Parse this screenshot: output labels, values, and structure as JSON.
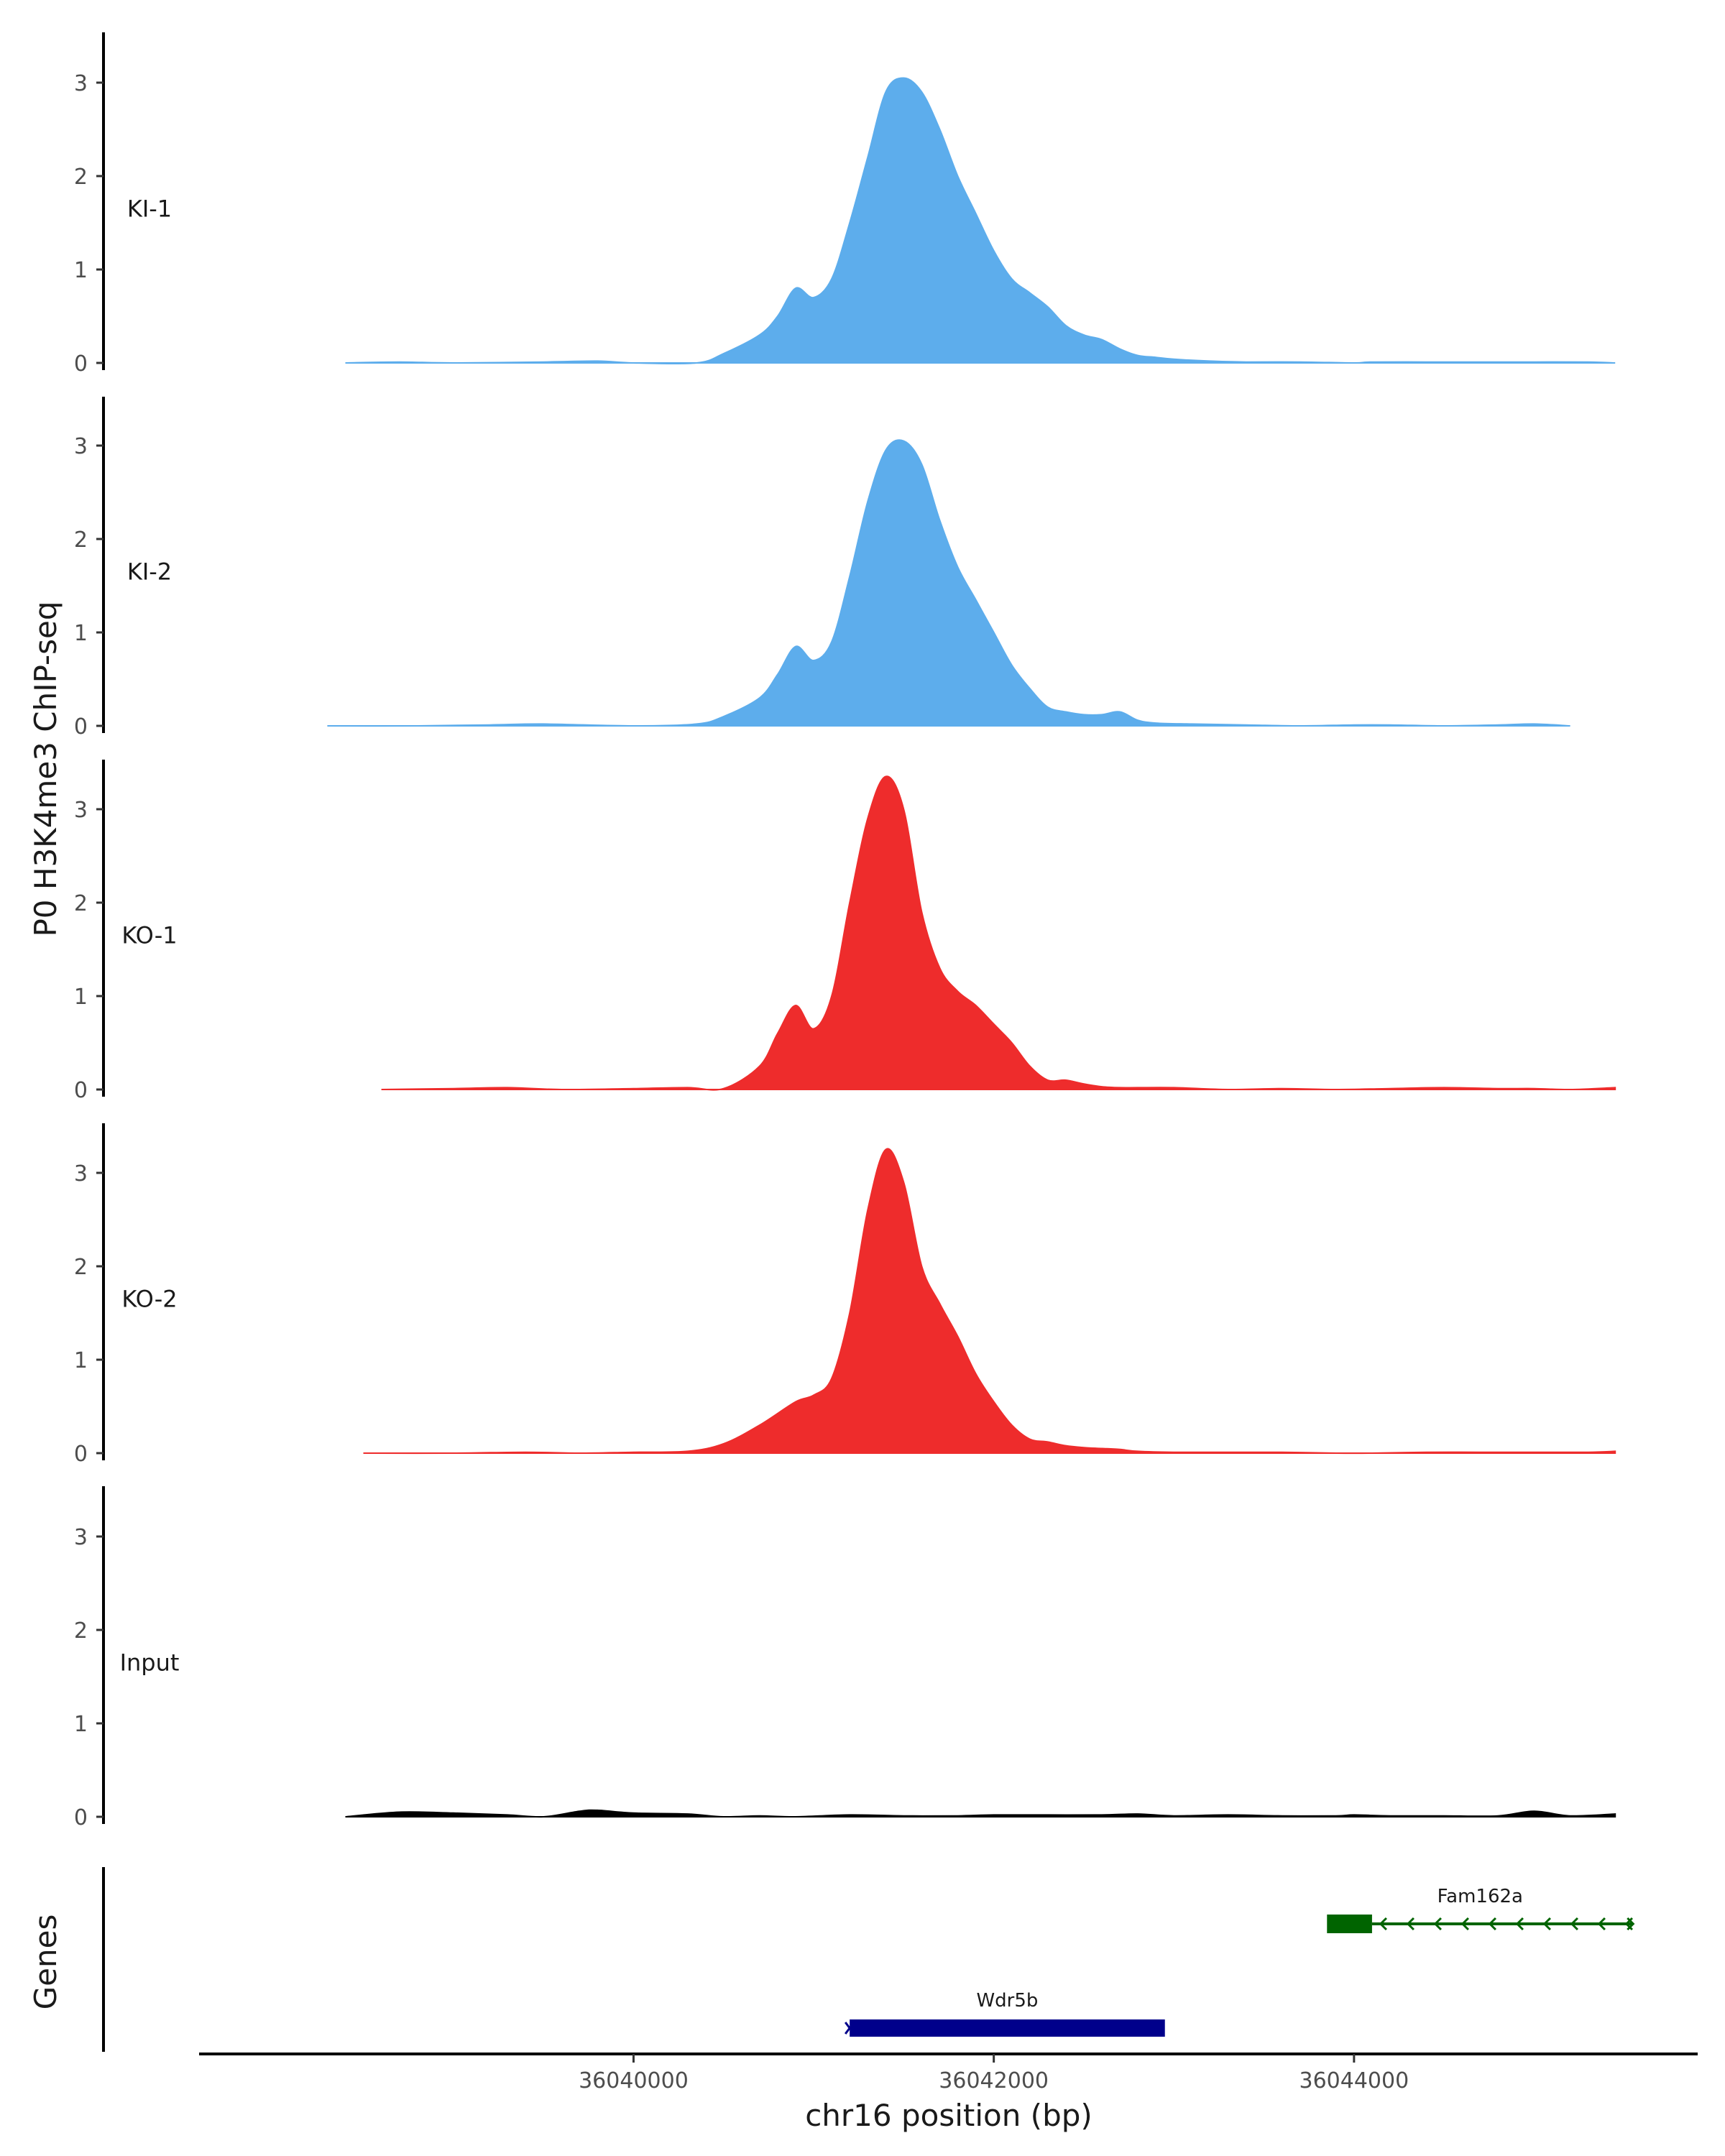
{
  "chart_data": {
    "type": "area",
    "ylabel": "P0 H3K4me3 ChIP-seq",
    "xlabel": "chr16 position (bp)",
    "genes_label": "Genes",
    "y_ticks": [
      "0",
      "1",
      "2",
      "3"
    ],
    "ylim": [
      0,
      3.55
    ],
    "xlim": [
      36037600,
      36045900
    ],
    "x_ticks": [
      {
        "value": 36040000,
        "label": "36040000"
      },
      {
        "value": 36042000,
        "label": "36042000"
      },
      {
        "value": 36044000,
        "label": "36044000"
      }
    ],
    "tracks": [
      {
        "name": "KI-1",
        "color": "#5DADEC",
        "x": [
          36038400,
          36038700,
          36039000,
          36039500,
          36039800,
          36040000,
          36040350,
          36040500,
          36040700,
          36040800,
          36040900,
          36041000,
          36041100,
          36041200,
          36041300,
          36041400,
          36041500,
          36041600,
          36041700,
          36041800,
          36041900,
          36042000,
          36042100,
          36042200,
          36042300,
          36042400,
          36042500,
          36042600,
          36042700,
          36042800,
          36042900,
          36043000,
          36043200,
          36043400,
          36043700,
          36044000,
          36044100,
          36044400,
          36044700,
          36045000,
          36045300,
          36045450
        ],
        "values": [
          0,
          0.01,
          0,
          0.01,
          0.02,
          0,
          0,
          0.1,
          0.3,
          0.5,
          0.8,
          0.7,
          0.9,
          1.5,
          2.2,
          2.9,
          3.05,
          2.9,
          2.5,
          2.0,
          1.6,
          1.2,
          0.9,
          0.75,
          0.6,
          0.4,
          0.3,
          0.25,
          0.15,
          0.08,
          0.06,
          0.04,
          0.02,
          0.01,
          0.01,
          0,
          0.01,
          0.01,
          0.01,
          0.01,
          0.01,
          0
        ]
      },
      {
        "name": "KI-2",
        "color": "#5DADEC",
        "x": [
          36038300,
          36038800,
          36039200,
          36039500,
          36040000,
          36040350,
          36040500,
          36040700,
          36040800,
          36040900,
          36041000,
          36041100,
          36041200,
          36041300,
          36041400,
          36041500,
          36041600,
          36041700,
          36041800,
          36041900,
          36042000,
          36042100,
          36042200,
          36042300,
          36042400,
          36042500,
          36042600,
          36042700,
          36042800,
          36042900,
          36043100,
          36043400,
          36043700,
          36044000,
          36044200,
          36044500,
          36044800,
          36045000,
          36045200
        ],
        "values": [
          0,
          0,
          0.01,
          0.02,
          0,
          0.02,
          0.1,
          0.3,
          0.55,
          0.85,
          0.7,
          0.9,
          1.6,
          2.4,
          2.95,
          3.05,
          2.8,
          2.2,
          1.7,
          1.35,
          1.0,
          0.65,
          0.4,
          0.2,
          0.15,
          0.12,
          0.12,
          0.15,
          0.06,
          0.03,
          0.02,
          0.01,
          0,
          0.01,
          0.01,
          0,
          0.01,
          0.02,
          0
        ]
      },
      {
        "name": "KO-1",
        "color": "#EE2C2C",
        "x": [
          36038600,
          36039000,
          36039300,
          36039600,
          36040000,
          36040300,
          36040500,
          36040700,
          36040800,
          36040900,
          36041000,
          36041100,
          36041200,
          36041300,
          36041400,
          36041500,
          36041600,
          36041700,
          36041800,
          36041900,
          36042000,
          36042100,
          36042200,
          36042300,
          36042400,
          36042500,
          36042600,
          36042700,
          36042800,
          36043000,
          36043300,
          36043600,
          36043900,
          36044200,
          36044500,
          36044800,
          36045000,
          36045200,
          36045450
        ],
        "values": [
          0,
          0.01,
          0.02,
          0,
          0.01,
          0.02,
          0.01,
          0.25,
          0.6,
          0.9,
          0.65,
          1.0,
          2.0,
          2.9,
          3.35,
          3.0,
          1.9,
          1.3,
          1.05,
          0.9,
          0.7,
          0.5,
          0.25,
          0.1,
          0.1,
          0.06,
          0.03,
          0.02,
          0.02,
          0.02,
          0,
          0.01,
          0,
          0.01,
          0.02,
          0.01,
          0.01,
          0,
          0.02
        ]
      },
      {
        "name": "KO-2",
        "color": "#EE2C2C",
        "x": [
          36038500,
          36039000,
          36039400,
          36039700,
          36040000,
          36040300,
          36040500,
          36040700,
          36040900,
          36041000,
          36041100,
          36041200,
          36041300,
          36041400,
          36041500,
          36041600,
          36041700,
          36041800,
          36041900,
          36042000,
          36042100,
          36042200,
          36042300,
          36042400,
          36042500,
          36042600,
          36042700,
          36042800,
          36043000,
          36043300,
          36043600,
          36043900,
          36044100,
          36044400,
          36044700,
          36045000,
          36045300,
          36045450
        ],
        "values": [
          0,
          0,
          0.01,
          0,
          0.01,
          0.02,
          0.1,
          0.3,
          0.55,
          0.62,
          0.8,
          1.5,
          2.6,
          3.25,
          2.9,
          2.0,
          1.6,
          1.25,
          0.85,
          0.55,
          0.3,
          0.15,
          0.12,
          0.08,
          0.06,
          0.05,
          0.04,
          0.02,
          0.01,
          0.01,
          0.01,
          0,
          0,
          0.01,
          0.01,
          0.01,
          0.01,
          0.02
        ]
      },
      {
        "name": "Input",
        "color": "#000000",
        "x": [
          36038400,
          36038700,
          36039000,
          36039300,
          36039500,
          36039700,
          36039800,
          36040000,
          36040300,
          36040500,
          36040700,
          36040900,
          36041200,
          36041500,
          36041800,
          36042000,
          36042300,
          36042600,
          36042800,
          36043000,
          36043300,
          36043600,
          36043900,
          36044000,
          36044200,
          36044500,
          36044800,
          36045000,
          36045200,
          36045450
        ],
        "values": [
          0,
          0.05,
          0.04,
          0.02,
          0,
          0.06,
          0.07,
          0.04,
          0.03,
          0,
          0.01,
          0,
          0.02,
          0.01,
          0.01,
          0.02,
          0.02,
          0.02,
          0.03,
          0.01,
          0.02,
          0.01,
          0.01,
          0.02,
          0.01,
          0.01,
          0.01,
          0.06,
          0.01,
          0.03
        ]
      }
    ],
    "genes": [
      {
        "name": "Wdr5b",
        "start": 36041200,
        "end": 36042950,
        "strand": "+",
        "color": "#00008B",
        "row": 1
      },
      {
        "name": "Fam162a",
        "start": 36043850,
        "end": 36045550,
        "strand": "-",
        "color": "#006400",
        "row": 0,
        "cds_end": 36044100
      }
    ]
  }
}
